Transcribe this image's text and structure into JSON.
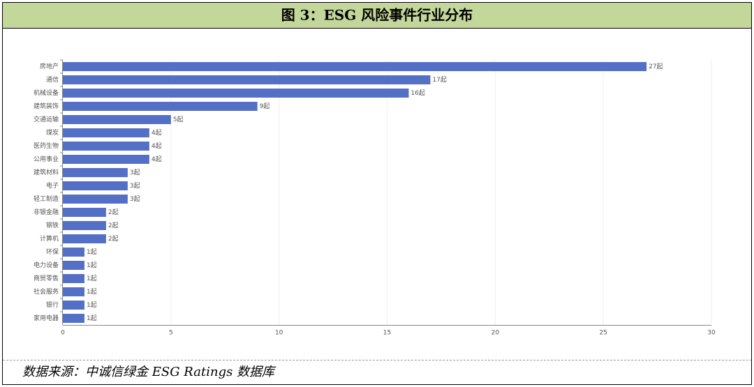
{
  "chart_data": {
    "type": "bar",
    "orientation": "horizontal",
    "title": "图 3：ESG 风险事件行业分布",
    "source": "数据来源：中诚信绿金 ESG Ratings 数据库",
    "categories": [
      "房地产",
      "通信",
      "机械设备",
      "建筑装饰",
      "交通运输",
      "煤炭",
      "医药生物",
      "公用事业",
      "建筑材料",
      "电子",
      "轻工制造",
      "非银金融",
      "钢铁",
      "计算机",
      "环保",
      "电力设备",
      "商贸零售",
      "社会服务",
      "银行",
      "家用电器"
    ],
    "values": [
      27,
      17,
      16,
      9,
      5,
      4,
      4,
      4,
      3,
      3,
      3,
      2,
      2,
      2,
      1,
      1,
      1,
      1,
      1,
      1
    ],
    "value_labels": [
      "27起",
      "17起",
      "16起",
      "9起",
      "5起",
      "4起",
      "4起",
      "4起",
      "3起",
      "3起",
      "3起",
      "2起",
      "2起",
      "2起",
      "1起",
      "1起",
      "1起",
      "1起",
      "1起",
      "1起"
    ],
    "color": "#5470c6",
    "xlim": [
      0,
      30
    ],
    "xticks": [
      0,
      5,
      10,
      15,
      20,
      25,
      30
    ],
    "grid": true
  }
}
